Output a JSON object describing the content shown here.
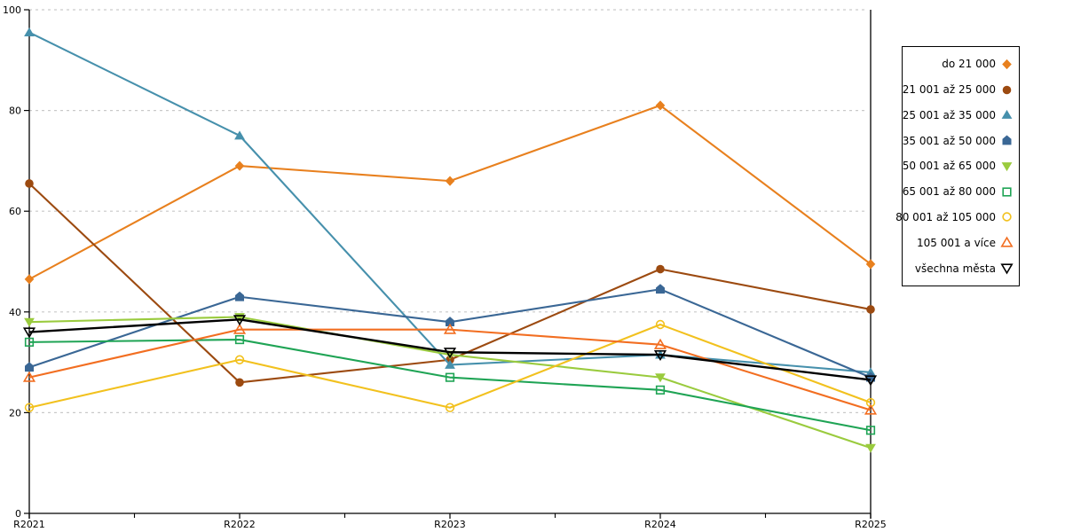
{
  "chart_data": {
    "type": "line",
    "title": "",
    "xlabel": "",
    "ylabel": "",
    "categories": [
      "R2021",
      "R2022",
      "R2023",
      "R2024",
      "R2025"
    ],
    "series": [
      {
        "name": "do 21 000",
        "color": "#E8801E",
        "marker": "diamond-filled",
        "values": [
          46.5,
          69,
          66,
          81,
          49.5
        ]
      },
      {
        "name": "21 001 až 25 000",
        "color": "#9C4A10",
        "marker": "circle-filled",
        "values": [
          65.5,
          26,
          30.5,
          48.5,
          40.5
        ]
      },
      {
        "name": "25 001 až 35 000",
        "color": "#4690AC",
        "marker": "triangle-up-filled",
        "values": [
          95.5,
          75,
          29.5,
          31.5,
          28
        ]
      },
      {
        "name": "35 001 až 50 000",
        "color": "#3A6795",
        "marker": "pentagon-filled",
        "values": [
          29,
          43,
          38,
          44.5,
          27
        ]
      },
      {
        "name": "50 001 až 65 000",
        "color": "#9ACB3E",
        "marker": "triangle-down-filled",
        "values": [
          38,
          39,
          31.5,
          27,
          13
        ]
      },
      {
        "name": "65 001 až 80 000",
        "color": "#1FA455",
        "marker": "square-open",
        "values": [
          34,
          34.5,
          27,
          24.5,
          16.5
        ]
      },
      {
        "name": "80 001 až 105 000",
        "color": "#F2C11E",
        "marker": "circle-open",
        "values": [
          21,
          30.5,
          21,
          37.5,
          22
        ]
      },
      {
        "name": "105 001 a více",
        "color": "#F26E21",
        "marker": "triangle-up-open",
        "values": [
          27,
          36.5,
          36.5,
          33.5,
          20.5
        ]
      },
      {
        "name": "všechna města",
        "color": "#000000",
        "marker": "triangle-down-open",
        "values": [
          36,
          38.5,
          32,
          31.5,
          26.5
        ],
        "line_width": 2.4
      }
    ],
    "ylim": [
      0,
      100
    ],
    "yticks": [
      0,
      20,
      40,
      60,
      80,
      100
    ],
    "grid": "dashed-horizontal",
    "legend_position": "right"
  },
  "colors": {
    "background": "#FFFFFF",
    "axis": "#000000",
    "gridline": "#C9C9C9",
    "text": "#000000"
  }
}
